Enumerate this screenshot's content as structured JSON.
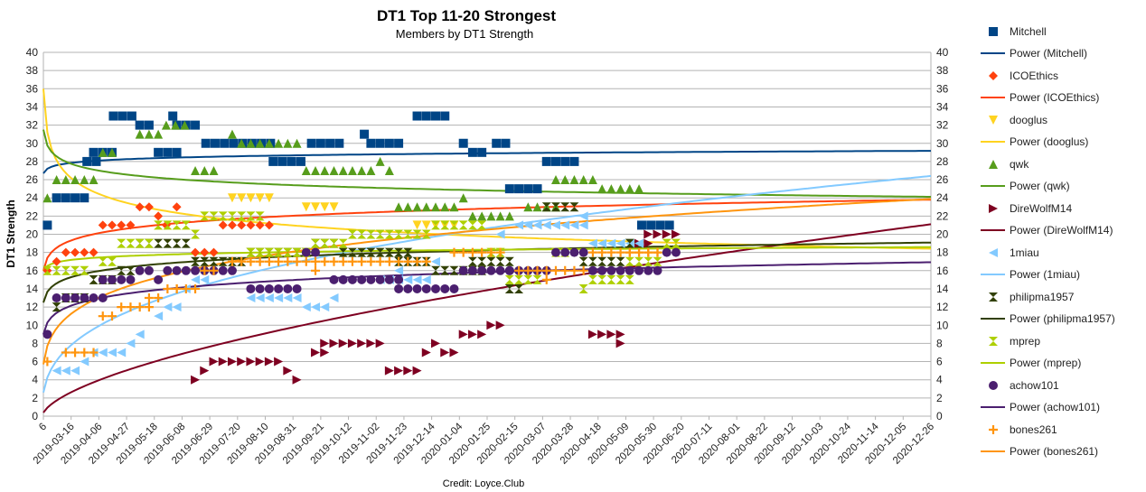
{
  "chart_data": {
    "type": "scatter",
    "title": "DT1 Top 11-20 Strongest",
    "subtitle": "Members by DT1 Strength",
    "ylabel": "DT1 Strength",
    "credit": "Credit: Loyce.Club",
    "ylim": [
      0,
      40
    ],
    "yticks": [
      0,
      2,
      4,
      6,
      8,
      10,
      12,
      14,
      16,
      18,
      20,
      22,
      24,
      26,
      28,
      30,
      32,
      34,
      36,
      38,
      40
    ],
    "xtick_labels": [
      "6",
      "2019-03-16",
      "2019-04-06",
      "2019-04-27",
      "2019-05-18",
      "2019-06-08",
      "2019-06-29",
      "2019-07-20",
      "2019-08-10",
      "2019-08-31",
      "2019-09-21",
      "2019-10-12",
      "2019-11-02",
      "2019-11-23",
      "2019-12-14",
      "2020-01-04",
      "2020-01-25",
      "2020-02-15",
      "2020-03-07",
      "2020-03-28",
      "2020-04-18",
      "2020-05-09",
      "2020-05-30",
      "2020-06-20",
      "2020-07-11",
      "2020-08-01",
      "2020-08-22",
      "2020-09-12",
      "2020-10-03",
      "2020-10-24",
      "2020-11-14",
      "2020-12-05",
      "2020-12-26"
    ],
    "x_axis_note": "one column per day; first tick at day 0, subsequent ticks every 21 days",
    "days_total": 672,
    "grid": "horizontal",
    "legend_position": "right",
    "series": [
      {
        "name": "Mitchell",
        "marker": "square",
        "color": "#004586",
        "power_name": "Power (Mitchell)",
        "power": {
          "y1": 26.7,
          "b": 0.0136
        },
        "runs": [
          [
            0,
            1,
            21
          ],
          [
            7,
            30,
            24
          ],
          [
            30,
            14,
            28
          ],
          [
            35,
            20,
            29
          ],
          [
            50,
            21,
            33
          ],
          [
            70,
            14,
            32
          ],
          [
            84,
            21,
            29
          ],
          [
            95,
            7,
            33
          ],
          [
            98,
            21,
            32
          ],
          [
            120,
            56,
            30
          ],
          [
            171,
            28,
            28
          ],
          [
            200,
            28,
            30
          ],
          [
            240,
            7,
            31
          ],
          [
            245,
            28,
            30
          ],
          [
            280,
            28,
            33
          ],
          [
            315,
            7,
            30
          ],
          [
            322,
            14,
            29
          ],
          [
            340,
            14,
            30
          ],
          [
            350,
            28,
            25
          ],
          [
            378,
            28,
            28
          ],
          [
            450,
            28,
            21
          ]
        ]
      },
      {
        "name": "ICOEthics",
        "marker": "diamond",
        "color": "#ff420e",
        "power_name": "Power (ICOEthics)",
        "power": {
          "y1": 16.0,
          "b": 0.061
        },
        "runs": [
          [
            0,
            7,
            16
          ],
          [
            7,
            7,
            17
          ],
          [
            14,
            28,
            18
          ],
          [
            42,
            28,
            21
          ],
          [
            70,
            14,
            23
          ],
          [
            84,
            7,
            22
          ],
          [
            90,
            7,
            21
          ],
          [
            98,
            7,
            23
          ],
          [
            112,
            21,
            18
          ],
          [
            133,
            42,
            21
          ]
        ]
      },
      {
        "name": "dooglus",
        "marker": "triangle-down",
        "color": "#ffd320",
        "power_name": "Power (dooglus)",
        "power": {
          "y1": 36.0,
          "b": -0.103
        },
        "runs": [
          [
            140,
            35,
            24
          ],
          [
            196,
            28,
            23
          ],
          [
            280,
            35,
            21
          ]
        ]
      },
      {
        "name": "qwk",
        "marker": "triangle-up",
        "color": "#579d1c",
        "power_name": "Power (qwk)",
        "power": {
          "y1": 31.5,
          "b": -0.041
        },
        "runs": [
          [
            0,
            7,
            24
          ],
          [
            7,
            35,
            26
          ],
          [
            42,
            7,
            29
          ],
          [
            49,
            7,
            29
          ],
          [
            70,
            21,
            31
          ],
          [
            90,
            21,
            32
          ],
          [
            112,
            21,
            27
          ],
          [
            140,
            7,
            31
          ],
          [
            147,
            49,
            30
          ],
          [
            196,
            56,
            27
          ],
          [
            252,
            7,
            28
          ],
          [
            259,
            7,
            27
          ],
          [
            266,
            49,
            23
          ],
          [
            315,
            7,
            24
          ],
          [
            322,
            35,
            22
          ],
          [
            364,
            28,
            23
          ],
          [
            385,
            35,
            26
          ],
          [
            420,
            35,
            25
          ]
        ]
      },
      {
        "name": "DireWolfM14",
        "marker": "triangle-right",
        "color": "#7e0021",
        "power_name": "Power (DireWolfM14)",
        "power": {
          "y1": 0.4,
          "b": 0.609
        },
        "runs": [
          [
            112,
            7,
            4
          ],
          [
            119,
            7,
            5
          ],
          [
            126,
            56,
            6
          ],
          [
            182,
            7,
            5
          ],
          [
            189,
            7,
            4
          ],
          [
            203,
            14,
            7
          ],
          [
            210,
            49,
            8
          ],
          [
            259,
            28,
            5
          ],
          [
            287,
            7,
            7
          ],
          [
            294,
            7,
            8
          ],
          [
            301,
            14,
            7
          ],
          [
            315,
            21,
            9
          ],
          [
            336,
            14,
            10
          ],
          [
            413,
            28,
            9
          ],
          [
            434,
            7,
            8
          ],
          [
            448,
            14,
            19
          ],
          [
            455,
            28,
            20
          ]
        ]
      },
      {
        "name": "1miau",
        "marker": "triangle-left",
        "color": "#83caff",
        "power_name": "Power (1miau)",
        "power": {
          "y1": 2.6,
          "b": 0.356
        },
        "runs": [
          [
            7,
            21,
            5
          ],
          [
            28,
            7,
            6
          ],
          [
            35,
            28,
            7
          ],
          [
            63,
            7,
            8
          ],
          [
            70,
            7,
            9
          ],
          [
            84,
            7,
            11
          ],
          [
            91,
            14,
            12
          ],
          [
            105,
            7,
            14
          ],
          [
            112,
            14,
            15
          ],
          [
            154,
            42,
            13
          ],
          [
            196,
            21,
            12
          ],
          [
            217,
            7,
            13
          ],
          [
            252,
            42,
            15
          ],
          [
            266,
            7,
            16
          ],
          [
            294,
            7,
            17
          ],
          [
            343,
            7,
            20
          ],
          [
            357,
            56,
            21
          ],
          [
            406,
            7,
            22
          ],
          [
            413,
            42,
            19
          ]
        ]
      },
      {
        "name": "philipma1957",
        "marker": "bowtie",
        "color": "#314004",
        "power_name": "Power (philipma1957)",
        "power": {
          "y1": 12.5,
          "b": 0.065
        },
        "runs": [
          [
            7,
            7,
            12
          ],
          [
            14,
            21,
            13
          ],
          [
            35,
            21,
            15
          ],
          [
            56,
            14,
            16
          ],
          [
            70,
            42,
            19
          ],
          [
            112,
            42,
            17
          ],
          [
            154,
            49,
            18
          ],
          [
            203,
            21,
            19
          ],
          [
            224,
            56,
            18
          ],
          [
            266,
            28,
            17
          ],
          [
            294,
            42,
            16
          ],
          [
            322,
            35,
            17
          ],
          [
            350,
            14,
            14
          ],
          [
            378,
            28,
            23
          ],
          [
            406,
            7,
            17
          ],
          [
            413,
            28,
            17
          ],
          [
            441,
            7,
            19
          ]
        ]
      },
      {
        "name": "mprep",
        "marker": "hourglass",
        "color": "#aecf00",
        "power_name": "Power (mprep)",
        "power": {
          "y1": 16.0,
          "b": 0.023
        },
        "runs": [
          [
            0,
            35,
            16
          ],
          [
            42,
            14,
            17
          ],
          [
            56,
            28,
            19
          ],
          [
            84,
            28,
            21
          ],
          [
            112,
            7,
            20
          ],
          [
            119,
            49,
            22
          ],
          [
            154,
            49,
            18
          ],
          [
            203,
            28,
            19
          ],
          [
            231,
            63,
            20
          ],
          [
            294,
            42,
            21
          ],
          [
            336,
            14,
            18
          ],
          [
            350,
            28,
            15
          ],
          [
            385,
            14,
            18
          ],
          [
            406,
            7,
            14
          ],
          [
            413,
            35,
            15
          ],
          [
            441,
            28,
            17
          ],
          [
            469,
            14,
            19
          ]
        ]
      },
      {
        "name": "achow101",
        "marker": "circle",
        "color": "#4b1f6f",
        "power_name": "Power (achow101)",
        "power": {
          "y1": 9.0,
          "b": 0.097
        },
        "runs": [
          [
            0,
            7,
            9
          ],
          [
            7,
            42,
            13
          ],
          [
            42,
            28,
            15
          ],
          [
            70,
            14,
            16
          ],
          [
            84,
            7,
            15
          ],
          [
            91,
            14,
            16
          ],
          [
            105,
            14,
            16
          ],
          [
            119,
            28,
            16
          ],
          [
            154,
            42,
            14
          ],
          [
            196,
            14,
            18
          ],
          [
            217,
            56,
            15
          ],
          [
            266,
            28,
            14
          ],
          [
            294,
            21,
            14
          ],
          [
            315,
            42,
            16
          ],
          [
            350,
            35,
            16
          ],
          [
            385,
            28,
            18
          ],
          [
            413,
            56,
            16
          ],
          [
            469,
            14,
            18
          ]
        ]
      },
      {
        "name": "bones261",
        "marker": "plus",
        "color": "#ff950e",
        "power_name": "Power (bones261)",
        "power": {
          "y1": 5.7,
          "b": 0.22
        },
        "runs": [
          [
            0,
            7,
            6
          ],
          [
            14,
            28,
            7
          ],
          [
            42,
            14,
            11
          ],
          [
            56,
            28,
            12
          ],
          [
            77,
            14,
            13
          ],
          [
            91,
            14,
            14
          ],
          [
            98,
            21,
            14
          ],
          [
            119,
            14,
            16
          ],
          [
            140,
            42,
            17
          ],
          [
            182,
            28,
            17
          ],
          [
            203,
            7,
            16
          ],
          [
            210,
            28,
            17
          ],
          [
            238,
            28,
            17
          ],
          [
            266,
            28,
            17
          ],
          [
            308,
            42,
            18
          ],
          [
            357,
            28,
            16
          ],
          [
            378,
            7,
            15
          ],
          [
            385,
            28,
            16
          ],
          [
            413,
            56,
            18
          ],
          [
            441,
            28,
            18
          ]
        ]
      }
    ]
  }
}
